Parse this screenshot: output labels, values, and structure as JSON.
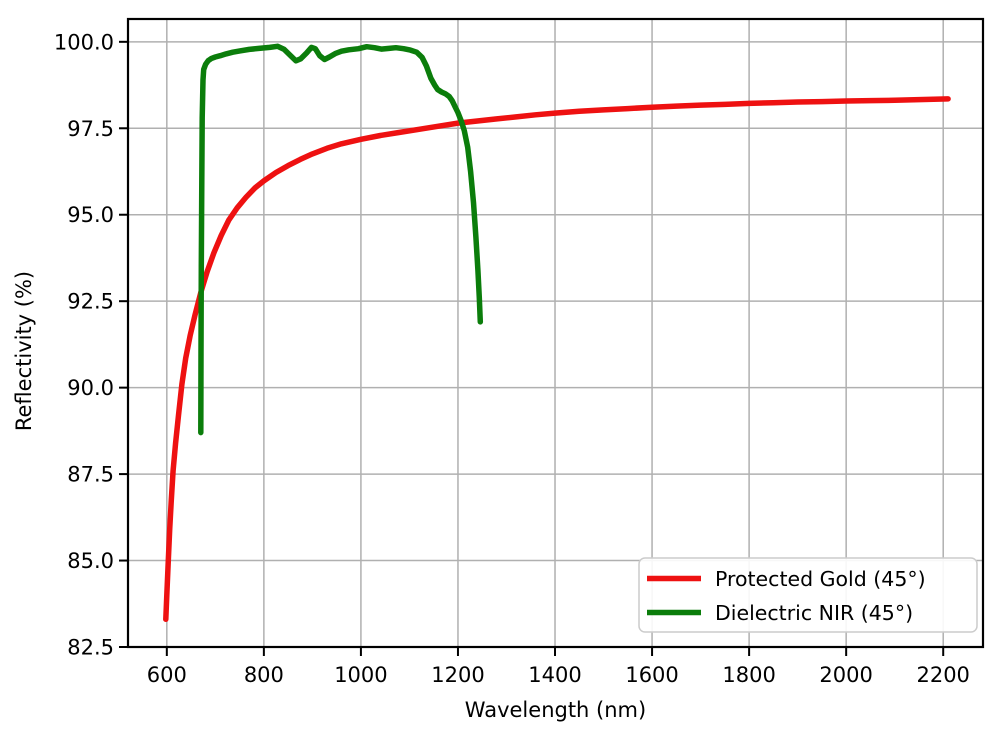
{
  "chart_data": {
    "type": "line",
    "title": "",
    "xlabel": "Wavelength (nm)",
    "ylabel": "Reflectivity (%)",
    "xlim": [
      520,
      2282
    ],
    "ylim": [
      82.5,
      100.66
    ],
    "xticks": [
      600,
      800,
      1000,
      1200,
      1400,
      1600,
      1800,
      2000,
      2200
    ],
    "yticks": [
      82.5,
      85.0,
      87.5,
      90.0,
      92.5,
      95.0,
      97.5,
      100.0
    ],
    "grid": true,
    "grid_color": "#b0b0b0",
    "spine_color": "#000000",
    "background": "#ffffff",
    "legend": {
      "position": "lower right",
      "border_color": "#cccccc",
      "fill": "#ffffff",
      "entries": [
        "Protected Gold (45°)",
        "Dielectric NIR (45°)"
      ]
    },
    "series": [
      {
        "name": "Protected Gold (45°)",
        "color": "#ee1111",
        "linewidth": 5.5,
        "points": [
          [
            598,
            83.3
          ],
          [
            600,
            84.0
          ],
          [
            603,
            85.0
          ],
          [
            606,
            85.9
          ],
          [
            609,
            86.7
          ],
          [
            613,
            87.6
          ],
          [
            618,
            88.4
          ],
          [
            624,
            89.2
          ],
          [
            631,
            90.1
          ],
          [
            639,
            90.85
          ],
          [
            648,
            91.5
          ],
          [
            658,
            92.1
          ],
          [
            670,
            92.75
          ],
          [
            683,
            93.35
          ],
          [
            697,
            93.9
          ],
          [
            712,
            94.4
          ],
          [
            728,
            94.85
          ],
          [
            745,
            95.2
          ],
          [
            763,
            95.5
          ],
          [
            782,
            95.78
          ],
          [
            800,
            95.98
          ],
          [
            825,
            96.22
          ],
          [
            850,
            96.42
          ],
          [
            875,
            96.6
          ],
          [
            900,
            96.76
          ],
          [
            930,
            96.92
          ],
          [
            960,
            97.05
          ],
          [
            1000,
            97.18
          ],
          [
            1040,
            97.29
          ],
          [
            1080,
            97.38
          ],
          [
            1120,
            97.47
          ],
          [
            1160,
            97.56
          ],
          [
            1200,
            97.65
          ],
          [
            1240,
            97.71
          ],
          [
            1280,
            97.77
          ],
          [
            1320,
            97.83
          ],
          [
            1360,
            97.89
          ],
          [
            1400,
            97.94
          ],
          [
            1450,
            97.99
          ],
          [
            1500,
            98.03
          ],
          [
            1550,
            98.07
          ],
          [
            1600,
            98.11
          ],
          [
            1650,
            98.14
          ],
          [
            1700,
            98.17
          ],
          [
            1750,
            98.19
          ],
          [
            1800,
            98.22
          ],
          [
            1850,
            98.24
          ],
          [
            1900,
            98.26
          ],
          [
            1950,
            98.27
          ],
          [
            2000,
            98.29
          ],
          [
            2050,
            98.3
          ],
          [
            2100,
            98.31
          ],
          [
            2150,
            98.33
          ],
          [
            2210,
            98.35
          ]
        ]
      },
      {
        "name": "Dielectric NIR (45°)",
        "color": "#0b7d0b",
        "linewidth": 5.5,
        "points": [
          [
            670,
            88.7
          ],
          [
            670.5,
            91.0
          ],
          [
            671,
            93.5
          ],
          [
            672,
            96.0
          ],
          [
            673,
            97.8
          ],
          [
            674.5,
            98.9
          ],
          [
            676,
            99.2
          ],
          [
            680,
            99.35
          ],
          [
            685,
            99.45
          ],
          [
            692,
            99.52
          ],
          [
            700,
            99.56
          ],
          [
            710,
            99.6
          ],
          [
            722,
            99.65
          ],
          [
            736,
            99.7
          ],
          [
            752,
            99.74
          ],
          [
            770,
            99.78
          ],
          [
            790,
            99.81
          ],
          [
            812,
            99.84
          ],
          [
            828,
            99.87
          ],
          [
            842,
            99.78
          ],
          [
            855,
            99.6
          ],
          [
            866,
            99.45
          ],
          [
            876,
            99.51
          ],
          [
            888,
            99.68
          ],
          [
            898,
            99.84
          ],
          [
            906,
            99.8
          ],
          [
            915,
            99.6
          ],
          [
            925,
            99.49
          ],
          [
            935,
            99.56
          ],
          [
            947,
            99.66
          ],
          [
            960,
            99.73
          ],
          [
            975,
            99.77
          ],
          [
            995,
            99.8
          ],
          [
            1012,
            99.86
          ],
          [
            1028,
            99.83
          ],
          [
            1042,
            99.79
          ],
          [
            1058,
            99.81
          ],
          [
            1072,
            99.83
          ],
          [
            1088,
            99.8
          ],
          [
            1102,
            99.76
          ],
          [
            1115,
            99.7
          ],
          [
            1126,
            99.55
          ],
          [
            1135,
            99.3
          ],
          [
            1144,
            98.95
          ],
          [
            1152,
            98.75
          ],
          [
            1158,
            98.62
          ],
          [
            1166,
            98.55
          ],
          [
            1174,
            98.5
          ],
          [
            1182,
            98.42
          ],
          [
            1188,
            98.3
          ],
          [
            1194,
            98.12
          ],
          [
            1200,
            97.95
          ],
          [
            1207,
            97.7
          ],
          [
            1213,
            97.43
          ],
          [
            1220,
            96.95
          ],
          [
            1226,
            96.25
          ],
          [
            1232,
            95.35
          ],
          [
            1237,
            94.35
          ],
          [
            1241,
            93.4
          ],
          [
            1244,
            92.6
          ],
          [
            1246,
            91.9
          ]
        ]
      }
    ]
  }
}
